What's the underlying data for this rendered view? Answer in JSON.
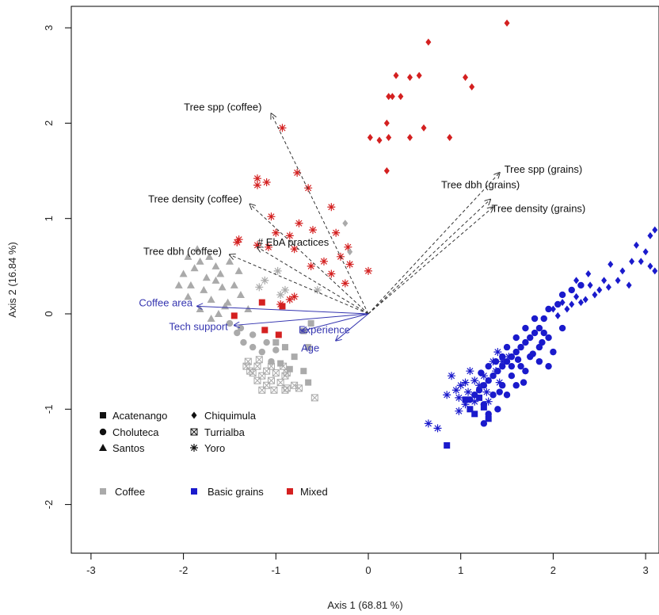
{
  "chart_data": {
    "type": "scatter",
    "xlabel": "Axis 1 (68.81 %)",
    "ylabel": "Axis 2 (16.84 %)",
    "xlim": [
      -3.3,
      3.1
    ],
    "ylim": [
      -2.5,
      3.2
    ],
    "x_ticks": [
      "-3",
      "-2",
      "-1",
      "0",
      "1",
      "2",
      "3"
    ],
    "y_ticks": [
      "-2",
      "-1",
      "0",
      "1",
      "2",
      "3"
    ],
    "grid": false,
    "colors": {
      "Coffee": "#aaaaaa",
      "Basic grains": "#1a1acc",
      "Mixed": "#d42020",
      "biplot": "#3535b0",
      "arrow": "#333333"
    },
    "vectors_dashed": [
      {
        "label": "Tree spp (coffee)",
        "x": -1.05,
        "y": 2.1
      },
      {
        "label": "Tree density (coffee)",
        "x": -1.28,
        "y": 1.15
      },
      {
        "label": "Tree dbh (coffee)",
        "x": -1.5,
        "y": 0.62
      },
      {
        "label": "# EbA practices",
        "x": -1.2,
        "y": 0.7
      },
      {
        "label": "Tree spp (grains)",
        "x": 1.42,
        "y": 1.48
      },
      {
        "label": "Tree dbh (grains)",
        "x": 1.32,
        "y": 1.2
      },
      {
        "label": "Tree density (grains)",
        "x": 1.35,
        "y": 1.12
      }
    ],
    "vectors_solid": [
      {
        "label": "Coffee area",
        "x": -1.85,
        "y": 0.08
      },
      {
        "label": "Tech support",
        "x": -1.45,
        "y": -0.12
      },
      {
        "label": "Experience",
        "x": -0.72,
        "y": -0.18
      },
      {
        "label": "Age",
        "x": -0.35,
        "y": -0.28
      }
    ],
    "legend": {
      "sites": [
        {
          "label": "Acatenango",
          "symbol": "square"
        },
        {
          "label": "Chiquimula",
          "symbol": "diamond"
        },
        {
          "label": "Choluteca",
          "symbol": "circle"
        },
        {
          "label": "Turrialba",
          "symbol": "boxx"
        },
        {
          "label": "Santos",
          "symbol": "triangle"
        },
        {
          "label": "Yoro",
          "symbol": "star"
        }
      ],
      "groups": [
        "Coffee",
        "Basic grains",
        "Mixed"
      ],
      "placement": "bottom-left"
    },
    "series": [
      {
        "name": "Mixed",
        "site": "Chiquimula",
        "symbol": "diamond",
        "points": [
          [
            1.5,
            3.05
          ],
          [
            0.65,
            2.85
          ],
          [
            0.3,
            2.5
          ],
          [
            0.45,
            2.48
          ],
          [
            0.55,
            2.5
          ],
          [
            1.05,
            2.48
          ],
          [
            1.12,
            2.38
          ],
          [
            0.22,
            2.28
          ],
          [
            0.26,
            2.28
          ],
          [
            0.35,
            2.28
          ],
          [
            0.2,
            2.0
          ],
          [
            0.6,
            1.95
          ],
          [
            0.22,
            1.85
          ],
          [
            0.02,
            1.85
          ],
          [
            0.12,
            1.82
          ],
          [
            0.45,
            1.85
          ],
          [
            0.88,
            1.85
          ],
          [
            0.2,
            1.5
          ]
        ]
      },
      {
        "name": "Mixed",
        "site": "Yoro",
        "symbol": "star",
        "points": [
          [
            -0.93,
            1.95
          ],
          [
            -1.2,
            1.42
          ],
          [
            -1.1,
            1.38
          ],
          [
            -1.2,
            1.35
          ],
          [
            -0.77,
            1.48
          ],
          [
            -0.65,
            1.32
          ],
          [
            -0.4,
            1.12
          ],
          [
            -1.05,
            1.02
          ],
          [
            -0.75,
            0.95
          ],
          [
            -1.0,
            0.85
          ],
          [
            -0.85,
            0.82
          ],
          [
            -0.6,
            0.88
          ],
          [
            -0.35,
            0.85
          ],
          [
            -1.4,
            0.78
          ],
          [
            -1.42,
            0.75
          ],
          [
            -1.08,
            0.7
          ],
          [
            -1.2,
            0.72
          ],
          [
            -0.8,
            0.68
          ],
          [
            -0.22,
            0.7
          ],
          [
            -0.3,
            0.6
          ],
          [
            -0.48,
            0.55
          ],
          [
            -0.62,
            0.5
          ],
          [
            -0.2,
            0.52
          ],
          [
            -0.4,
            0.42
          ],
          [
            -0.25,
            0.32
          ],
          [
            -0.8,
            0.18
          ],
          [
            -0.85,
            0.15
          ],
          [
            -0.95,
            0.1
          ],
          [
            0.0,
            0.45
          ]
        ]
      },
      {
        "name": "Mixed",
        "site": "Acatenango",
        "symbol": "square",
        "points": [
          [
            -1.15,
            0.12
          ],
          [
            -0.93,
            0.08
          ],
          [
            -1.12,
            -0.17
          ],
          [
            -0.97,
            -0.22
          ],
          [
            -1.45,
            -0.02
          ]
        ]
      },
      {
        "name": "Coffee",
        "site": "Santos",
        "symbol": "triangle",
        "points": [
          [
            -1.85,
            0.68
          ],
          [
            -1.72,
            0.6
          ],
          [
            -1.95,
            0.6
          ],
          [
            -1.82,
            0.55
          ],
          [
            -1.65,
            0.5
          ],
          [
            -1.88,
            0.48
          ],
          [
            -2.0,
            0.42
          ],
          [
            -1.75,
            0.38
          ],
          [
            -1.6,
            0.42
          ],
          [
            -1.92,
            0.3
          ],
          [
            -1.78,
            0.25
          ],
          [
            -1.58,
            0.28
          ],
          [
            -1.95,
            0.18
          ],
          [
            -1.7,
            0.15
          ],
          [
            -1.52,
            0.12
          ],
          [
            -1.82,
            0.05
          ],
          [
            -1.62,
            0.0
          ],
          [
            -2.05,
            0.3
          ],
          [
            -1.45,
            0.3
          ],
          [
            -1.38,
            0.2
          ],
          [
            -1.65,
            0.35
          ],
          [
            -1.5,
            0.55
          ],
          [
            -1.4,
            0.45
          ],
          [
            -1.55,
            0.08
          ],
          [
            -1.3,
            0.05
          ],
          [
            -1.7,
            -0.05
          ]
        ]
      },
      {
        "name": "Coffee",
        "site": "Choluteca",
        "symbol": "circle",
        "points": [
          [
            -1.5,
            -0.1
          ],
          [
            -1.42,
            -0.2
          ],
          [
            -1.35,
            -0.3
          ],
          [
            -1.25,
            -0.35
          ],
          [
            -1.15,
            -0.4
          ],
          [
            -1.05,
            -0.5
          ],
          [
            -1.38,
            -0.15
          ],
          [
            -1.25,
            -0.22
          ],
          [
            -1.1,
            -0.3
          ],
          [
            -1.0,
            -0.38
          ]
        ]
      },
      {
        "name": "Coffee",
        "site": "Turrialba",
        "symbol": "boxx",
        "points": [
          [
            -1.3,
            -0.5
          ],
          [
            -1.2,
            -0.55
          ],
          [
            -1.1,
            -0.6
          ],
          [
            -1.25,
            -0.62
          ],
          [
            -1.15,
            -0.65
          ],
          [
            -1.05,
            -0.7
          ],
          [
            -0.95,
            -0.72
          ],
          [
            -1.2,
            -0.7
          ],
          [
            -1.1,
            -0.75
          ],
          [
            -1.28,
            -0.6
          ],
          [
            -1.32,
            -0.55
          ],
          [
            -1.0,
            -0.62
          ],
          [
            -0.9,
            -0.65
          ],
          [
            -1.05,
            -0.55
          ],
          [
            -0.92,
            -0.55
          ],
          [
            -1.18,
            -0.48
          ],
          [
            -0.88,
            -0.78
          ],
          [
            -0.8,
            -0.75
          ],
          [
            -0.9,
            -0.8
          ],
          [
            -0.75,
            -0.78
          ],
          [
            -0.88,
            -0.62
          ],
          [
            -0.58,
            -0.88
          ],
          [
            -1.02,
            -0.8
          ],
          [
            -1.15,
            -0.8
          ]
        ]
      },
      {
        "name": "Coffee",
        "site": "Acatenango",
        "symbol": "square",
        "points": [
          [
            -1.0,
            -0.3
          ],
          [
            -0.9,
            -0.35
          ],
          [
            -0.8,
            -0.45
          ],
          [
            -0.95,
            -0.52
          ],
          [
            -0.85,
            -0.58
          ],
          [
            -0.65,
            -0.72
          ],
          [
            -0.7,
            -0.6
          ],
          [
            -0.62,
            -0.1
          ],
          [
            -0.7,
            -0.18
          ],
          [
            -0.65,
            -0.35
          ]
        ]
      },
      {
        "name": "Coffee",
        "site": "Chiquimula",
        "symbol": "diamond",
        "points": [
          [
            -0.25,
            0.95
          ],
          [
            -0.2,
            0.65
          ]
        ]
      },
      {
        "name": "Coffee",
        "site": "Yoro",
        "symbol": "star",
        "points": [
          [
            -1.18,
            0.28
          ],
          [
            -1.12,
            0.35
          ],
          [
            -0.9,
            0.25
          ],
          [
            -0.98,
            0.45
          ],
          [
            -0.55,
            0.25
          ],
          [
            -0.95,
            0.2
          ]
        ]
      },
      {
        "name": "Basic grains",
        "site": "Chiquimula",
        "symbol": "diamond",
        "points": [
          [
            3.1,
            0.88
          ],
          [
            3.05,
            0.82
          ],
          [
            3.0,
            0.65
          ],
          [
            2.95,
            0.55
          ],
          [
            3.05,
            0.5
          ],
          [
            3.1,
            0.45
          ],
          [
            2.9,
            0.72
          ],
          [
            2.85,
            0.55
          ],
          [
            2.75,
            0.45
          ],
          [
            2.62,
            0.52
          ],
          [
            2.55,
            0.35
          ],
          [
            2.5,
            0.25
          ],
          [
            2.45,
            0.2
          ],
          [
            2.4,
            0.3
          ],
          [
            2.35,
            0.15
          ],
          [
            2.3,
            0.12
          ],
          [
            2.25,
            0.18
          ],
          [
            2.2,
            0.1
          ],
          [
            2.15,
            0.05
          ],
          [
            2.1,
            0.12
          ],
          [
            2.05,
            -0.02
          ],
          [
            2.0,
            0.05
          ],
          [
            2.7,
            0.35
          ],
          [
            2.6,
            0.28
          ],
          [
            2.82,
            0.3
          ],
          [
            2.38,
            0.42
          ],
          [
            2.25,
            0.35
          ]
        ]
      },
      {
        "name": "Basic grains",
        "site": "Choluteca",
        "symbol": "circle",
        "points": [
          [
            2.3,
            0.3
          ],
          [
            2.2,
            0.25
          ],
          [
            2.1,
            0.2
          ],
          [
            2.05,
            0.1
          ],
          [
            1.95,
            0.05
          ],
          [
            1.9,
            -0.05
          ],
          [
            1.85,
            -0.15
          ],
          [
            1.8,
            -0.2
          ],
          [
            1.75,
            -0.25
          ],
          [
            1.7,
            -0.3
          ],
          [
            1.65,
            -0.35
          ],
          [
            1.6,
            -0.4
          ],
          [
            1.55,
            -0.45
          ],
          [
            1.5,
            -0.5
          ],
          [
            1.45,
            -0.55
          ],
          [
            1.4,
            -0.6
          ],
          [
            1.35,
            -0.65
          ],
          [
            1.3,
            -0.7
          ],
          [
            1.25,
            -0.75
          ],
          [
            1.2,
            -0.8
          ],
          [
            1.15,
            -0.85
          ],
          [
            1.1,
            -0.9
          ],
          [
            1.25,
            -0.95
          ],
          [
            1.35,
            -0.85
          ],
          [
            1.45,
            -0.75
          ],
          [
            1.55,
            -0.65
          ],
          [
            1.65,
            -0.55
          ],
          [
            1.75,
            -0.45
          ],
          [
            1.85,
            -0.35
          ],
          [
            1.95,
            -0.25
          ],
          [
            2.0,
            -0.4
          ],
          [
            1.85,
            -0.5
          ],
          [
            1.7,
            -0.6
          ],
          [
            1.6,
            -0.75
          ],
          [
            1.5,
            -0.85
          ],
          [
            1.4,
            -1.0
          ],
          [
            1.3,
            -1.05
          ],
          [
            1.25,
            -1.15
          ],
          [
            1.9,
            -0.2
          ],
          [
            1.8,
            -0.05
          ],
          [
            1.7,
            -0.15
          ],
          [
            1.6,
            -0.25
          ],
          [
            1.5,
            -0.35
          ],
          [
            1.45,
            -0.45
          ],
          [
            1.38,
            -0.5
          ],
          [
            1.3,
            -0.55
          ],
          [
            1.22,
            -0.62
          ],
          [
            1.55,
            -0.55
          ],
          [
            1.62,
            -0.48
          ],
          [
            2.1,
            -0.15
          ],
          [
            1.95,
            -0.55
          ],
          [
            1.78,
            -0.42
          ],
          [
            1.68,
            -0.72
          ],
          [
            1.42,
            -0.82
          ],
          [
            1.88,
            -0.3
          ]
        ]
      },
      {
        "name": "Basic grains",
        "site": "Acatenango",
        "symbol": "square",
        "points": [
          [
            0.85,
            -1.38
          ],
          [
            1.1,
            -1.0
          ],
          [
            1.05,
            -0.9
          ],
          [
            1.15,
            -1.05
          ],
          [
            1.25,
            -0.98
          ],
          [
            1.3,
            -1.1
          ],
          [
            1.2,
            -0.88
          ]
        ]
      },
      {
        "name": "Basic grains",
        "site": "Yoro",
        "symbol": "star",
        "points": [
          [
            0.65,
            -1.15
          ],
          [
            0.75,
            -1.2
          ],
          [
            0.9,
            -0.65
          ],
          [
            1.1,
            -0.6
          ],
          [
            1.0,
            -0.75
          ],
          [
            0.95,
            -0.8
          ],
          [
            0.85,
            -0.85
          ],
          [
            1.05,
            -0.72
          ],
          [
            1.15,
            -0.7
          ],
          [
            1.25,
            -0.65
          ],
          [
            1.38,
            -0.6
          ],
          [
            1.45,
            -0.5
          ],
          [
            1.35,
            -0.5
          ],
          [
            1.28,
            -0.82
          ],
          [
            1.15,
            -0.92
          ],
          [
            1.05,
            -0.95
          ],
          [
            0.98,
            -0.88
          ],
          [
            1.42,
            -0.72
          ],
          [
            1.52,
            -0.45
          ],
          [
            1.08,
            -0.82
          ],
          [
            1.2,
            -0.75
          ],
          [
            0.98,
            -1.02
          ],
          [
            1.3,
            -0.92
          ],
          [
            1.4,
            -0.4
          ]
        ]
      }
    ]
  }
}
